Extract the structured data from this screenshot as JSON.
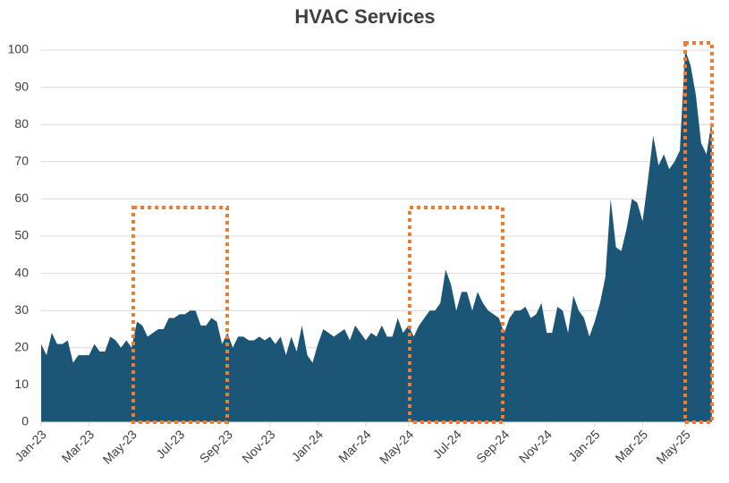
{
  "chart_data": {
    "type": "area",
    "title": "HVAC Services",
    "color": "#1b5677",
    "grid": true,
    "ylim": [
      0,
      100
    ],
    "yticks": [
      0,
      10,
      20,
      30,
      40,
      50,
      60,
      70,
      80,
      90,
      100
    ],
    "categories": [
      "Jan-23",
      null,
      null,
      null,
      null,
      null,
      null,
      null,
      null,
      "Mar-23",
      null,
      null,
      null,
      null,
      null,
      null,
      null,
      "May-23",
      null,
      null,
      null,
      null,
      null,
      null,
      null,
      null,
      "Jul-23",
      null,
      null,
      null,
      null,
      null,
      null,
      null,
      null,
      "Sep-23",
      null,
      null,
      null,
      null,
      null,
      null,
      null,
      "Nov-23",
      null,
      null,
      null,
      null,
      null,
      null,
      null,
      null,
      "Jan-24",
      null,
      null,
      null,
      null,
      null,
      null,
      null,
      null,
      "Mar-24",
      null,
      null,
      null,
      null,
      null,
      null,
      null,
      "May-24",
      null,
      null,
      null,
      null,
      null,
      null,
      null,
      null,
      "Jul-24",
      null,
      null,
      null,
      null,
      null,
      null,
      null,
      null,
      "Sep-24",
      null,
      null,
      null,
      null,
      null,
      null,
      null,
      "Nov-24",
      null,
      null,
      null,
      null,
      null,
      null,
      null,
      null,
      "Jan-25",
      null,
      null,
      null,
      null,
      null,
      null,
      null,
      null,
      "Mar-25",
      null,
      null,
      null,
      null,
      null,
      null,
      null,
      "May-25",
      null,
      null,
      null,
      null,
      null
    ],
    "values": [
      21,
      18,
      24,
      21,
      21,
      22,
      16,
      18,
      18,
      18,
      21,
      19,
      19,
      23,
      22,
      20,
      22,
      20,
      27,
      26,
      23,
      24,
      25,
      25,
      28,
      28,
      29,
      29,
      30,
      30,
      26,
      26,
      28,
      27,
      21,
      24,
      20,
      23,
      23,
      22,
      22,
      23,
      22,
      23,
      21,
      23,
      18,
      23,
      19,
      26,
      18,
      16,
      21,
      25,
      24,
      23,
      24,
      25,
      22,
      26,
      24,
      22,
      24,
      23,
      26,
      23,
      23,
      28,
      24,
      26,
      23,
      26,
      28,
      30,
      30,
      32,
      41,
      37,
      30,
      35,
      35,
      30,
      35,
      32,
      30,
      29,
      28,
      24,
      28,
      30,
      30,
      31,
      28,
      29,
      32,
      24,
      24,
      31,
      30,
      24,
      34,
      30,
      28,
      23,
      27,
      32,
      39,
      60,
      47,
      46,
      52,
      60,
      59,
      54,
      65,
      77,
      69,
      72,
      68,
      70,
      73,
      100,
      96,
      88,
      75,
      72,
      81
    ]
  }
}
